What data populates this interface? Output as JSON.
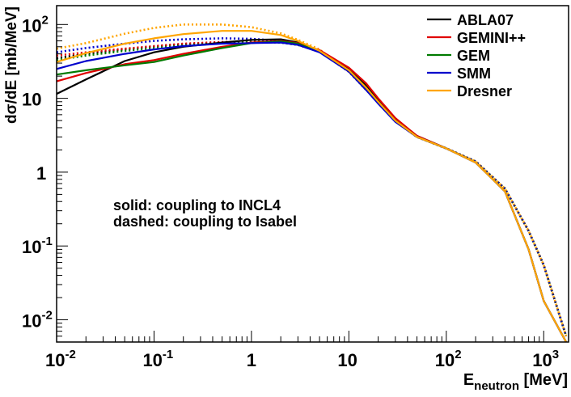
{
  "chart_data": {
    "type": "line",
    "xscale": "log",
    "yscale": "log",
    "xlim": [
      0.01,
      1800
    ],
    "ylim": [
      0.005,
      180
    ],
    "xlabel": {
      "main": "E",
      "sub": "neutron",
      "unit": " [MeV]"
    },
    "ylabel": "dσ/dE [mb/MeV]",
    "x_ticks": [
      {
        "v": 0.01,
        "base": "10",
        "exp": "-2"
      },
      {
        "v": 0.1,
        "base": "10",
        "exp": "-1"
      },
      {
        "v": 1,
        "base": "1",
        "exp": ""
      },
      {
        "v": 10,
        "base": "10",
        "exp": ""
      },
      {
        "v": 100,
        "base": "10",
        "exp": "2"
      },
      {
        "v": 1000,
        "base": "10",
        "exp": "3"
      }
    ],
    "y_ticks": [
      {
        "v": 100,
        "base": "10",
        "exp": "2"
      },
      {
        "v": 10,
        "base": "10",
        "exp": ""
      },
      {
        "v": 1,
        "base": "1",
        "exp": ""
      },
      {
        "v": 0.1,
        "base": "10",
        "exp": "-1"
      },
      {
        "v": 0.01,
        "base": "10",
        "exp": "-2"
      }
    ],
    "legend": {
      "position": "top-right"
    },
    "annotations": [
      "solid: coupling to INCL4",
      "dashed: coupling to Isabel"
    ],
    "series": [
      {
        "name": "ABLA07",
        "color": "#000000",
        "style": "solid",
        "x": [
          0.01,
          0.02,
          0.05,
          0.1,
          0.2,
          0.5,
          1,
          2,
          3,
          5,
          10,
          15,
          20,
          30,
          50,
          100,
          200,
          400,
          700,
          1000,
          1700
        ],
        "y": [
          11.5,
          18,
          32,
          42,
          50,
          57,
          62,
          63,
          57,
          44,
          25,
          15,
          9.5,
          5.2,
          3.1,
          2.1,
          1.35,
          0.55,
          0.09,
          0.018,
          0.005
        ]
      },
      {
        "name": "GEMINI++",
        "color": "#e00000",
        "style": "solid",
        "x": [
          0.01,
          0.02,
          0.05,
          0.1,
          0.2,
          0.5,
          1,
          2,
          3,
          5,
          10,
          15,
          20,
          30,
          50,
          100,
          200,
          400,
          700,
          1000,
          1700
        ],
        "y": [
          17,
          22,
          29,
          33,
          40,
          50,
          57,
          60,
          56,
          45,
          26,
          16,
          10,
          5.4,
          3.1,
          2.1,
          1.35,
          0.55,
          0.09,
          0.018,
          0.005
        ]
      },
      {
        "name": "GEM",
        "color": "#007a00",
        "style": "solid",
        "x": [
          0.01,
          0.02,
          0.05,
          0.1,
          0.2,
          0.5,
          1,
          2,
          3,
          5,
          10,
          15,
          20,
          30,
          50,
          100,
          200,
          400,
          700,
          1000,
          1700
        ],
        "y": [
          21,
          24,
          28,
          31,
          38,
          48,
          56,
          59,
          55,
          43,
          24,
          14,
          9,
          5,
          3,
          2.1,
          1.35,
          0.55,
          0.09,
          0.018,
          0.005
        ]
      },
      {
        "name": "SMM",
        "color": "#0000cc",
        "style": "solid",
        "x": [
          0.01,
          0.02,
          0.05,
          0.1,
          0.2,
          0.5,
          1,
          2,
          3,
          5,
          10,
          15,
          20,
          30,
          50,
          100,
          200,
          400,
          700,
          1000,
          1700
        ],
        "y": [
          25,
          32,
          40,
          46,
          51,
          55,
          56,
          57,
          53,
          42,
          23,
          13,
          8.5,
          4.8,
          3,
          2.1,
          1.35,
          0.55,
          0.09,
          0.018,
          0.005
        ]
      },
      {
        "name": "Dresner",
        "color": "#ffa500",
        "style": "solid",
        "x": [
          0.01,
          0.02,
          0.05,
          0.1,
          0.2,
          0.5,
          1,
          2,
          3,
          5,
          10,
          15,
          20,
          30,
          50,
          100,
          200,
          400,
          700,
          1000,
          1700
        ],
        "y": [
          31,
          41,
          55,
          65,
          74,
          82,
          82,
          72,
          60,
          44,
          24,
          14,
          9,
          5,
          3,
          2.1,
          1.35,
          0.55,
          0.09,
          0.018,
          0.005
        ]
      },
      {
        "name": "",
        "color": "#000000",
        "style": "dashed",
        "x": [
          0.01,
          0.02,
          0.05,
          0.1,
          0.2,
          0.5,
          1,
          2,
          3,
          5,
          10,
          20,
          30,
          50,
          100,
          200,
          400,
          700,
          1000,
          1700
        ],
        "y": [
          35,
          40,
          46,
          50,
          54,
          57,
          58,
          57,
          53,
          43,
          23,
          8.8,
          4.9,
          3.0,
          2.1,
          1.4,
          0.6,
          0.16,
          0.055,
          0.006
        ]
      },
      {
        "name": "",
        "color": "#e00000",
        "style": "dashed",
        "x": [
          0.01,
          0.02,
          0.05,
          0.1,
          0.2,
          0.5,
          1,
          2,
          3,
          5,
          10,
          20,
          30,
          50,
          100,
          200,
          400,
          700,
          1000,
          1700
        ],
        "y": [
          38,
          42,
          47,
          51,
          55,
          58,
          59,
          58,
          54,
          43,
          23,
          8.8,
          4.9,
          3.0,
          2.1,
          1.4,
          0.6,
          0.16,
          0.055,
          0.006
        ]
      },
      {
        "name": "",
        "color": "#007a00",
        "style": "dashed",
        "x": [
          0.01,
          0.02,
          0.05,
          0.1,
          0.2,
          0.5,
          1,
          2,
          3,
          5,
          10,
          20,
          30,
          50,
          100,
          200,
          400,
          700,
          1000,
          1700
        ],
        "y": [
          33,
          38,
          44,
          48,
          52,
          56,
          58,
          57,
          53,
          43,
          23,
          8.8,
          4.9,
          3.0,
          2.1,
          1.4,
          0.6,
          0.16,
          0.055,
          0.006
        ]
      },
      {
        "name": "",
        "color": "#0000cc",
        "style": "dashed",
        "x": [
          0.01,
          0.02,
          0.05,
          0.1,
          0.2,
          0.5,
          1,
          2,
          3,
          5,
          10,
          20,
          30,
          50,
          100,
          200,
          400,
          700,
          1000,
          1700
        ],
        "y": [
          42,
          48,
          55,
          60,
          63,
          65,
          64,
          60,
          55,
          44,
          23,
          8.8,
          4.9,
          3.0,
          2.1,
          1.4,
          0.6,
          0.16,
          0.055,
          0.006
        ]
      },
      {
        "name": "",
        "color": "#ffa500",
        "style": "dashed",
        "x": [
          0.01,
          0.02,
          0.05,
          0.1,
          0.2,
          0.5,
          1,
          2,
          3,
          5,
          10,
          20,
          30,
          50,
          100,
          200,
          400,
          700,
          1000,
          1700
        ],
        "y": [
          47,
          56,
          75,
          90,
          100,
          100,
          92,
          76,
          62,
          46,
          23,
          8.8,
          4.9,
          3.0,
          2.1,
          1.4,
          0.6,
          0.16,
          0.055,
          0.006
        ]
      }
    ]
  }
}
